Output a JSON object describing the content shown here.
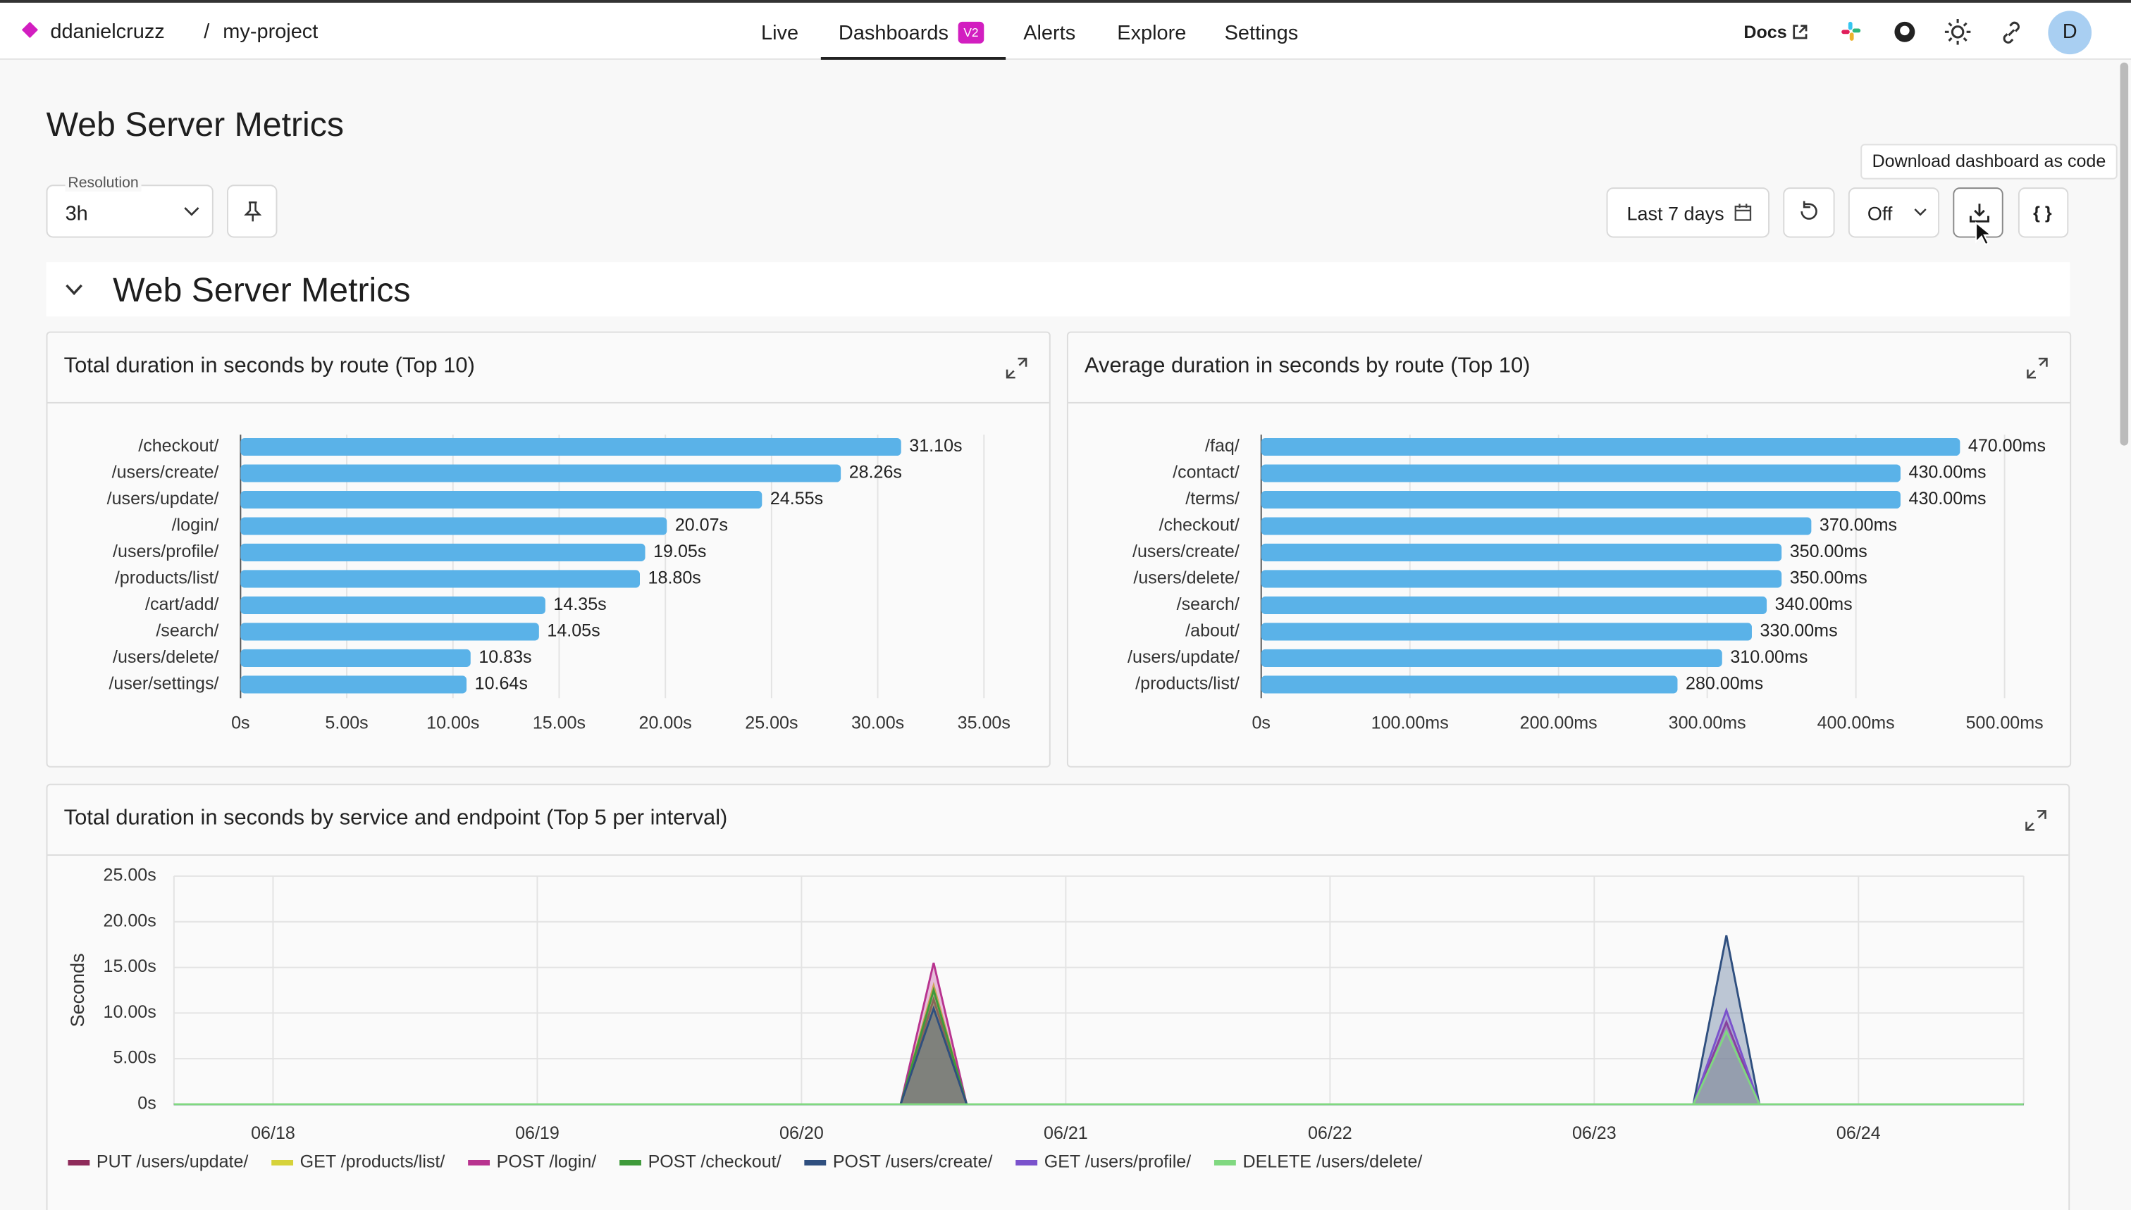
{
  "nav": {
    "org": "ddanielcruzz",
    "separator": "/",
    "project": "my-project",
    "tabs": [
      "Live",
      "Dashboards",
      "Alerts",
      "Explore",
      "Settings"
    ],
    "badge": "V2",
    "docs": "Docs",
    "avatar": "D"
  },
  "page": {
    "title": "Web Server Metrics",
    "resolution_label": "Resolution",
    "resolution": "3h",
    "time_range": "Last 7 days",
    "refresh": "Off",
    "tooltip": "Download dashboard as code",
    "code_button": "{ }",
    "section_title": "Web Server Metrics"
  },
  "chart_data": [
    {
      "type": "bar",
      "horizontal": true,
      "title": "Total duration in seconds by route (Top 10)",
      "color": "#5ab2e8",
      "grid": true,
      "categories": [
        "/checkout/",
        "/users/create/",
        "/users/update/",
        "/login/",
        "/users/profile/",
        "/products/list/",
        "/cart/add/",
        "/search/",
        "/users/delete/",
        "/user/settings/"
      ],
      "values": [
        31.1,
        28.26,
        24.55,
        20.07,
        19.05,
        18.8,
        14.35,
        14.05,
        10.83,
        10.64
      ],
      "value_labels": [
        "31.10s",
        "28.26s",
        "24.55s",
        "20.07s",
        "19.05s",
        "18.80s",
        "14.35s",
        "14.05s",
        "10.83s",
        "10.64s"
      ],
      "xlim": [
        0,
        35
      ],
      "xticks": [
        {
          "value": 0,
          "label": "0s"
        },
        {
          "value": 5,
          "label": "5.00s"
        },
        {
          "value": 10,
          "label": "10.00s"
        },
        {
          "value": 15,
          "label": "15.00s"
        },
        {
          "value": 20,
          "label": "20.00s"
        },
        {
          "value": 25,
          "label": "25.00s"
        },
        {
          "value": 30,
          "label": "30.00s"
        },
        {
          "value": 35,
          "label": "35.00s"
        }
      ]
    },
    {
      "type": "bar",
      "horizontal": true,
      "title": "Average duration in seconds by route (Top 10)",
      "color": "#5ab2e8",
      "grid": true,
      "categories": [
        "/faq/",
        "/contact/",
        "/terms/",
        "/checkout/",
        "/users/create/",
        "/users/delete/",
        "/search/",
        "/about/",
        "/users/update/",
        "/products/list/"
      ],
      "values": [
        470,
        430,
        430,
        370,
        350,
        350,
        340,
        330,
        310,
        280
      ],
      "value_labels": [
        "470.00ms",
        "430.00ms",
        "430.00ms",
        "370.00ms",
        "350.00ms",
        "350.00ms",
        "340.00ms",
        "330.00ms",
        "310.00ms",
        "280.00ms"
      ],
      "xlim": [
        0,
        500
      ],
      "xticks": [
        {
          "value": 0,
          "label": "0s"
        },
        {
          "value": 100,
          "label": "100.00ms"
        },
        {
          "value": 200,
          "label": "200.00ms"
        },
        {
          "value": 300,
          "label": "300.00ms"
        },
        {
          "value": 400,
          "label": "400.00ms"
        },
        {
          "value": 500,
          "label": "500.00ms"
        }
      ]
    },
    {
      "type": "area",
      "title": "Total duration in seconds by service and endpoint (Top 5 per interval)",
      "y_label": "Seconds",
      "grid": true,
      "legend": "bottom",
      "x": [
        17.625,
        20.375,
        20.5,
        20.625,
        23.375,
        23.5,
        23.625,
        24.625
      ],
      "xlim": [
        17.625,
        24.625
      ],
      "xticks": [
        {
          "value": 18,
          "label": "06/18"
        },
        {
          "value": 19,
          "label": "06/19"
        },
        {
          "value": 20,
          "label": "06/20"
        },
        {
          "value": 21,
          "label": "06/21"
        },
        {
          "value": 22,
          "label": "06/22"
        },
        {
          "value": 23,
          "label": "06/23"
        },
        {
          "value": 24,
          "label": "06/24"
        }
      ],
      "ylim": [
        0,
        25
      ],
      "yticks": [
        {
          "value": 0,
          "label": "0s"
        },
        {
          "value": 5,
          "label": "5.00s"
        },
        {
          "value": 10,
          "label": "10.00s"
        },
        {
          "value": 15,
          "label": "15.00s"
        },
        {
          "value": 20,
          "label": "20.00s"
        },
        {
          "value": 25,
          "label": "25.00s"
        }
      ],
      "series": [
        {
          "name": "PUT /users/update/",
          "color": "#8e2b5a",
          "values": [
            0,
            0,
            11.5,
            0,
            0,
            0,
            0,
            0
          ]
        },
        {
          "name": "GET /products/list/",
          "color": "#d6d23a",
          "values": [
            0,
            0,
            13,
            0,
            0,
            0,
            0,
            0
          ]
        },
        {
          "name": "POST /login/",
          "color": "#b8338f",
          "values": [
            0,
            0,
            15.5,
            0,
            0,
            9,
            0,
            0
          ]
        },
        {
          "name": "POST /checkout/",
          "color": "#3f9a3a",
          "values": [
            0,
            0,
            12.5,
            0,
            0,
            0,
            0,
            0
          ]
        },
        {
          "name": "POST /users/create/",
          "color": "#2f4f7f",
          "values": [
            0,
            0,
            10.5,
            0,
            0,
            18.5,
            0,
            0
          ]
        },
        {
          "name": "GET /users/profile/",
          "color": "#7a52cc",
          "values": [
            0,
            0,
            0,
            0,
            0,
            10.3,
            0,
            0
          ]
        },
        {
          "name": "DELETE /users/delete/",
          "color": "#80d880",
          "values": [
            0,
            0,
            0,
            0,
            0,
            8,
            0,
            0
          ]
        }
      ]
    }
  ]
}
